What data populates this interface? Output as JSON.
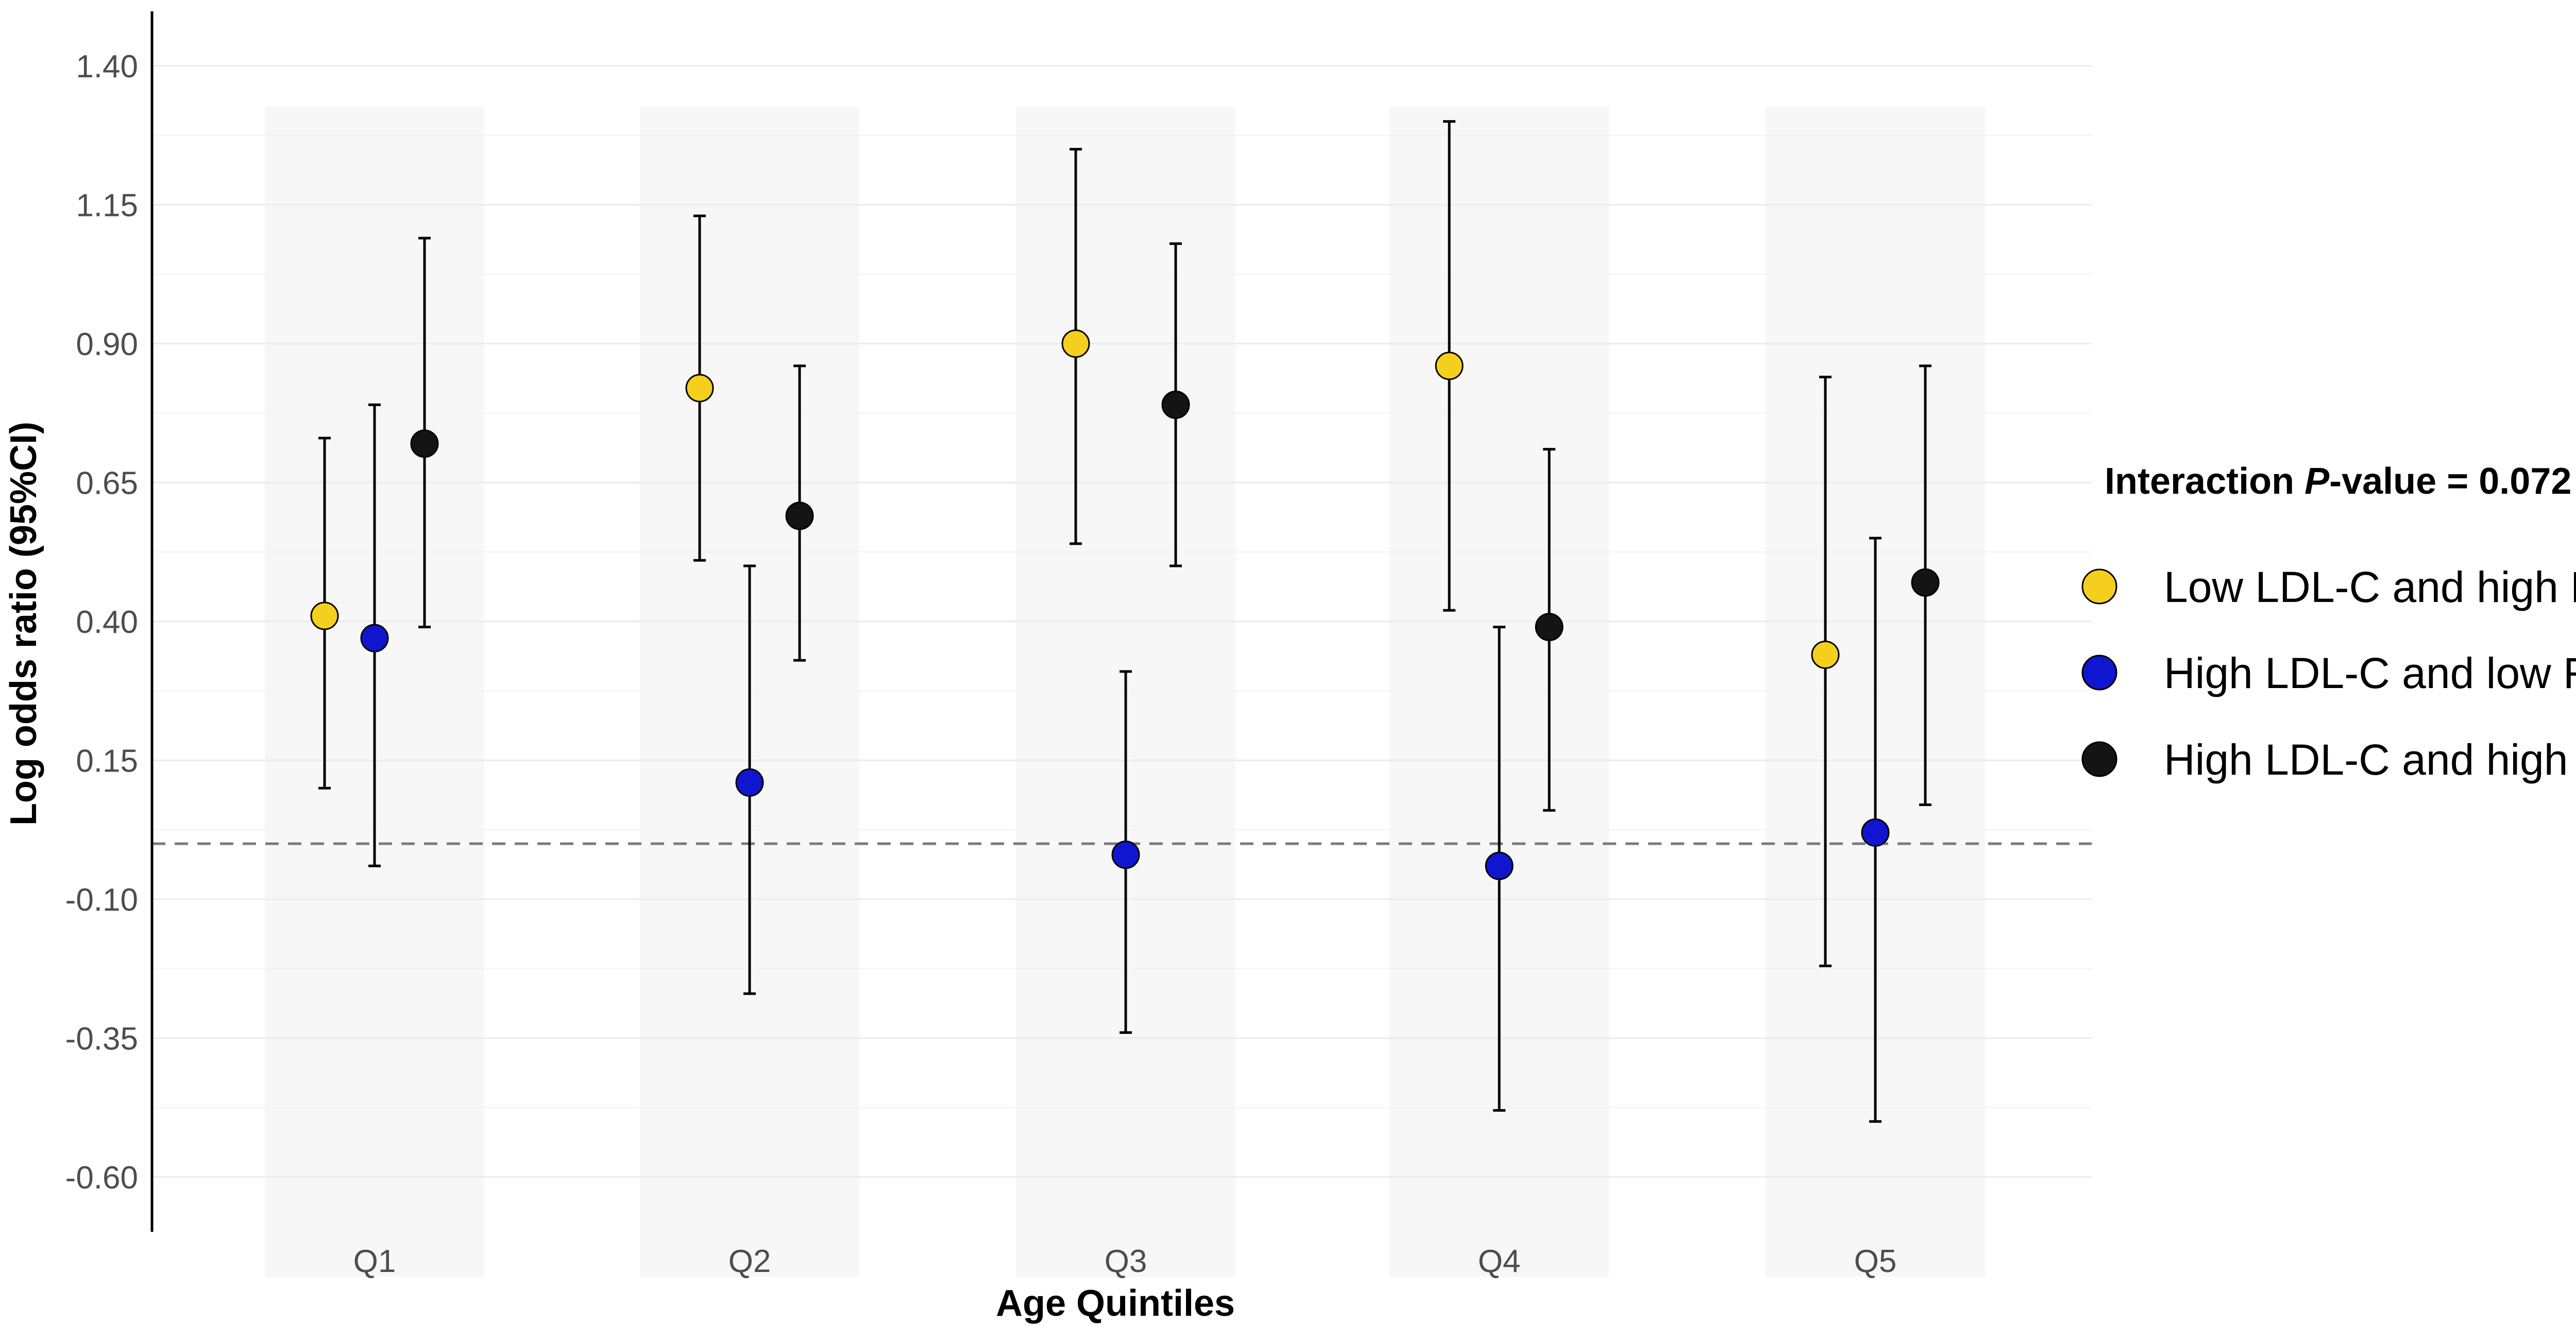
{
  "chart_data": {
    "type": "scatter",
    "subtype": "dodged point estimates with 95% CI error bars",
    "xlabel": "Age Quintiles",
    "ylabel": "Log odds ratio (95%CI)",
    "categories": [
      "Q1",
      "Q2",
      "Q3",
      "Q4",
      "Q5"
    ],
    "yticks": [
      "1.40",
      "1.15",
      "0.90",
      "0.65",
      "0.40",
      "0.15",
      "-0.10",
      "-0.35",
      "-0.60"
    ],
    "ylim": [
      -0.7,
      1.5
    ],
    "reference_line": 0.0,
    "grid": true,
    "legend": {
      "title_prefix": "Interaction ",
      "title_italic": "P",
      "title_suffix": "-value = 0.072",
      "position": "right"
    },
    "series": [
      {
        "name": "Low LDL-C and high RC",
        "color": "#f5cf1d",
        "values": [
          0.41,
          0.82,
          0.9,
          0.86,
          0.34
        ],
        "lower": [
          0.1,
          0.51,
          0.54,
          0.42,
          -0.22
        ],
        "upper": [
          0.73,
          1.13,
          1.25,
          1.3,
          0.84
        ]
      },
      {
        "name": "High LDL-C and low RC",
        "color": "#1016d0",
        "values": [
          0.37,
          0.11,
          -0.02,
          -0.04,
          0.02
        ],
        "lower": [
          -0.04,
          -0.27,
          -0.34,
          -0.48,
          -0.5
        ],
        "upper": [
          0.79,
          0.5,
          0.31,
          0.39,
          0.55
        ]
      },
      {
        "name": "High LDL-C and high RC",
        "color": "#141414",
        "values": [
          0.72,
          0.59,
          0.79,
          0.39,
          0.47
        ],
        "lower": [
          0.39,
          0.33,
          0.5,
          0.06,
          0.07
        ],
        "upper": [
          1.09,
          0.86,
          1.08,
          0.71,
          0.86
        ]
      }
    ]
  }
}
